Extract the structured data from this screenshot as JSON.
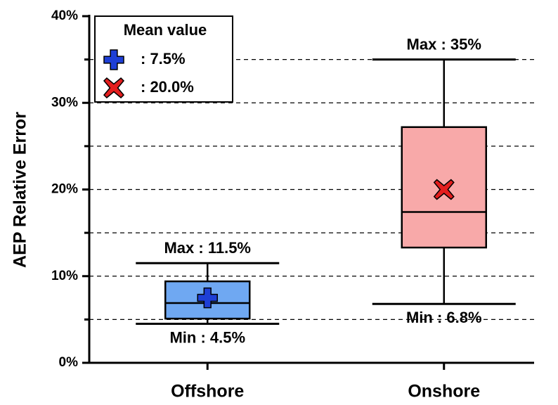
{
  "chart_data": {
    "type": "box",
    "y_label": "AEP Relative Error",
    "categories": [
      "Offshore",
      "Onshore"
    ],
    "boxes": [
      {
        "color": "#6fa8f2",
        "marker_color": "#1e3fd6",
        "marker": "plus",
        "min": 4.5,
        "q1": 5.1,
        "median": 6.9,
        "q3": 9.4,
        "max": 11.5,
        "mean": 7.5,
        "max_label": "Max : 11.5%",
        "min_label": "Min : 4.5%",
        "mean_label": ": 7.5%"
      },
      {
        "color": "#f8a9a9",
        "marker_color": "#e41e1e",
        "marker": "cross",
        "min": 6.8,
        "q1": 13.3,
        "median": 17.4,
        "q3": 27.2,
        "max": 35,
        "mean": 20.0,
        "max_label": "Max : 35%",
        "min_label": "Min : 6.8%",
        "mean_label": ": 20.0%"
      }
    ],
    "legend_title": "Mean value",
    "legend_position": "upper left",
    "ylim": [
      0,
      40
    ],
    "yticks": [
      {
        "value": 0,
        "label": "0%"
      },
      {
        "value": 10,
        "label": "10%"
      },
      {
        "value": 20,
        "label": "20%"
      },
      {
        "value": 30,
        "label": "30%"
      },
      {
        "value": 40,
        "label": "40%"
      }
    ],
    "minor_yticks": [
      5,
      15,
      25,
      35
    ],
    "grid": true
  }
}
